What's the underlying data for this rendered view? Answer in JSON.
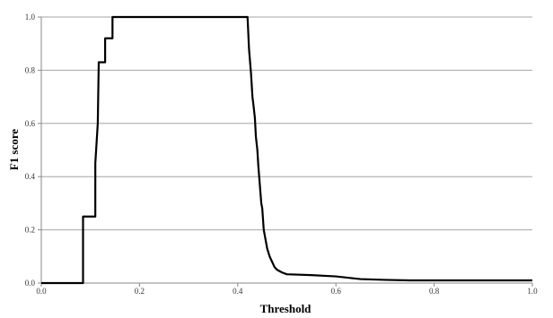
{
  "chart_data": {
    "type": "line",
    "title": "",
    "xlabel": "Threshold",
    "ylabel": "F1 score",
    "xlim": [
      0,
      1
    ],
    "ylim": [
      0,
      1
    ],
    "x_ticks": [
      "0.0",
      "0.2",
      "0.4",
      "0.6",
      "0.8",
      "1.0"
    ],
    "y_ticks": [
      "0.0",
      "0.2",
      "0.4",
      "0.6",
      "0.8",
      "1.0"
    ],
    "grid": "horizontal",
    "legend": "none",
    "series": [
      {
        "color": "#000000",
        "x": [
          0.0,
          0.085,
          0.085,
          0.11,
          0.11,
          0.115,
          0.117,
          0.12,
          0.13,
          0.13,
          0.145,
          0.145,
          0.42,
          0.423,
          0.427,
          0.43,
          0.432,
          0.435,
          0.437,
          0.44,
          0.442,
          0.445,
          0.448,
          0.45,
          0.453,
          0.457,
          0.46,
          0.465,
          0.47,
          0.475,
          0.48,
          0.49,
          0.5,
          0.55,
          0.6,
          0.65,
          0.7,
          0.75,
          0.8,
          0.9,
          1.0
        ],
        "y": [
          0.0,
          0.0,
          0.25,
          0.25,
          0.45,
          0.6,
          0.83,
          0.83,
          0.83,
          0.92,
          0.92,
          1.0,
          1.0,
          0.88,
          0.79,
          0.7,
          0.67,
          0.62,
          0.55,
          0.5,
          0.44,
          0.37,
          0.3,
          0.28,
          0.2,
          0.16,
          0.13,
          0.1,
          0.08,
          0.06,
          0.05,
          0.04,
          0.033,
          0.03,
          0.025,
          0.015,
          0.012,
          0.01,
          0.01,
          0.01,
          0.01
        ]
      }
    ]
  }
}
